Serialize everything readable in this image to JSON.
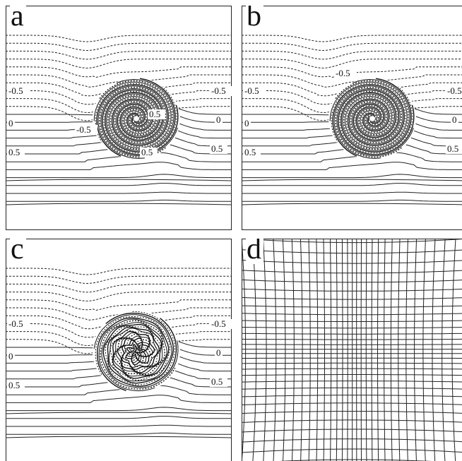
{
  "panels": [
    {
      "id": "a",
      "letter": "a",
      "kind": "contour",
      "labels": {
        "left_top": "-0.5",
        "left_mid": "0",
        "left_bot": "0.5",
        "right_top": "-0.5",
        "right_mid": "0",
        "right_bot": "0.5",
        "core_top": "0.5",
        "core_bot": "-0.5",
        "core_low": "0.5"
      }
    },
    {
      "id": "b",
      "letter": "b",
      "kind": "contour",
      "labels": {
        "left_top": "-0.5",
        "left_mid": "0",
        "left_bot": "0.5",
        "right_top": "-0.5",
        "right_mid": "0",
        "right_bot": "0.5",
        "core_top": "-0.5"
      }
    },
    {
      "id": "c",
      "letter": "c",
      "kind": "contour",
      "labels": {
        "left_top": "-0.5",
        "left_mid": "0",
        "left_bot": "0.5",
        "right_top": "-0.5",
        "right_mid": "0",
        "right_bot": "0.5"
      }
    },
    {
      "id": "d",
      "letter": "d",
      "kind": "grid"
    }
  ]
}
